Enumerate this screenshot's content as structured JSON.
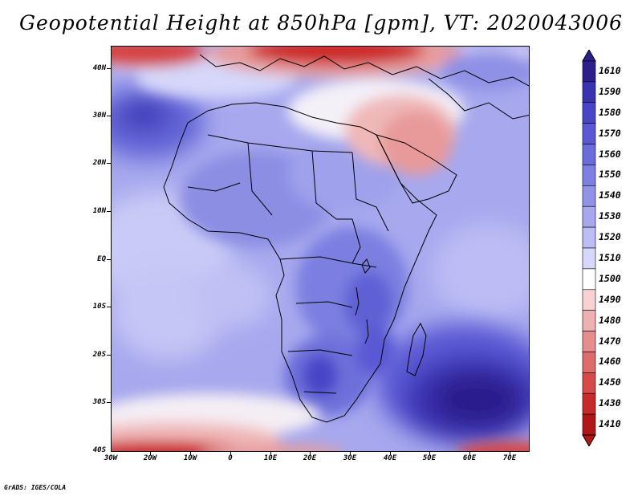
{
  "title": "Geopotential Height at 850hPa [gpm], VT: 2020043006",
  "credit": "GrADS: IGES/COLA",
  "axes": {
    "lat_labels": [
      "40N",
      "30N",
      "20N",
      "10N",
      "EQ",
      "10S",
      "20S",
      "30S",
      "40S"
    ],
    "lon_labels": [
      "30W",
      "20W",
      "10W",
      "0",
      "10E",
      "20E",
      "30E",
      "40E",
      "50E",
      "60E",
      "70E"
    ]
  },
  "colorbar": {
    "levels": [
      "1610",
      "1590",
      "1580",
      "1570",
      "1560",
      "1550",
      "1540",
      "1530",
      "1520",
      "1510",
      "1500",
      "1490",
      "1480",
      "1470",
      "1460",
      "1450",
      "1430",
      "1410"
    ],
    "colors": [
      "#2c1f8c",
      "#3a33b0",
      "#4a45c8",
      "#5a58d4",
      "#6b6cdc",
      "#7d80e2",
      "#9293e8",
      "#a6a7ee",
      "#bcbdf4",
      "#d6d7fa",
      "#ffffff",
      "#f6d2d2",
      "#eeb0b0",
      "#e68e8e",
      "#de6c6c",
      "#d64a4a",
      "#c82a2a",
      "#b01818"
    ]
  },
  "regions": {
    "mediterranean_high": "low heights (red)",
    "southern_ocean_low": "low heights (red)",
    "indian_ocean_high": "high heights (dark blue)",
    "north_atlantic_high": "high heights (dark blue)"
  },
  "palette": {
    "ocean_base": "#a9aaf0",
    "land_base": "#8f91e6",
    "deep_blue": "#3f3ab8",
    "red": "#cc2b2b",
    "pink": "#f0b8b8",
    "light": "#d8d9fb",
    "coast": "#000000"
  }
}
